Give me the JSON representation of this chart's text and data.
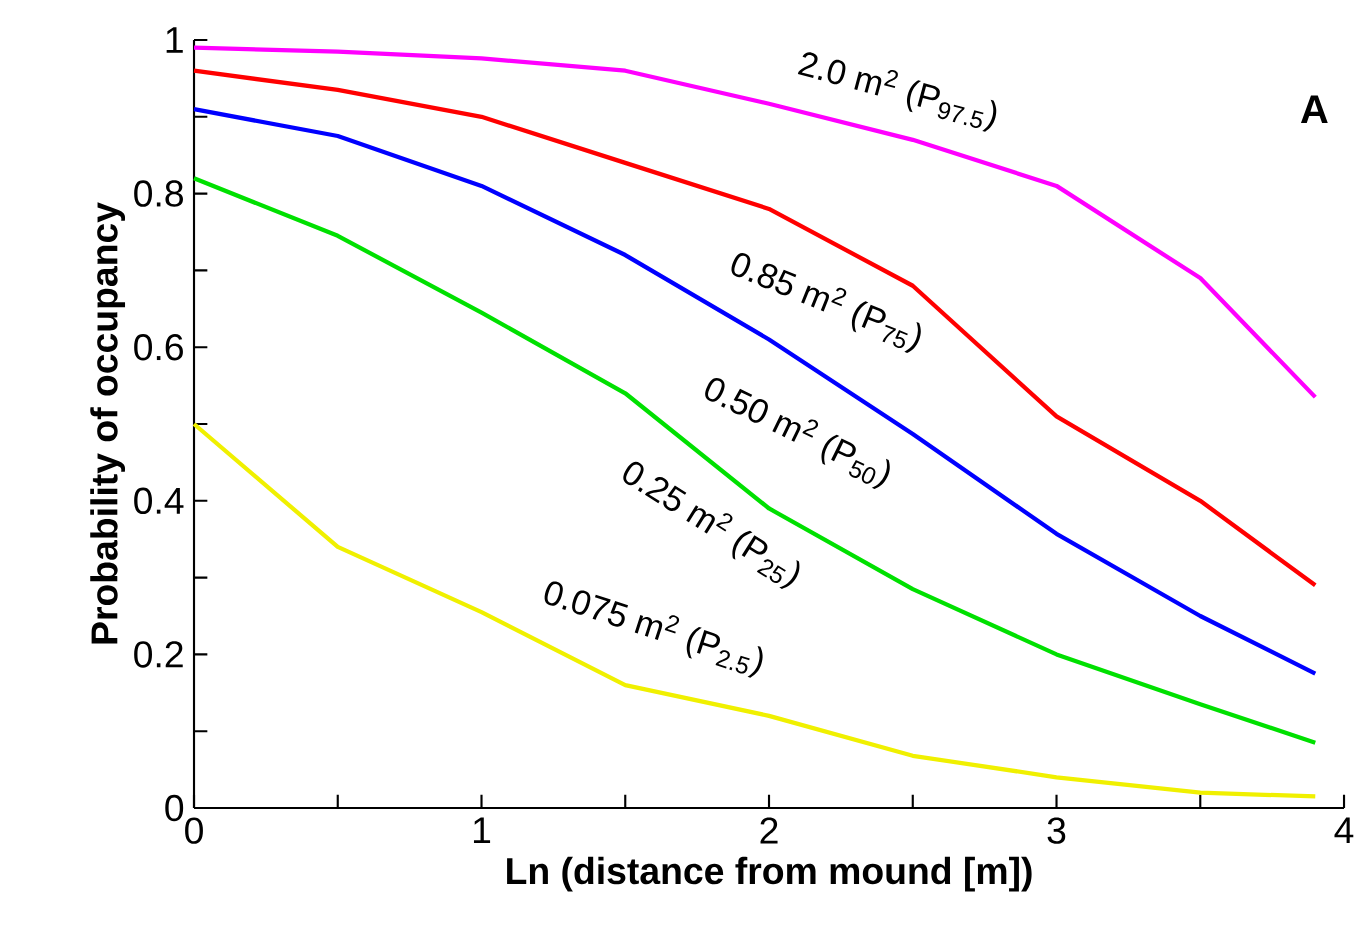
{
  "chart_data": {
    "type": "line",
    "xlabel": "Ln (distance from mound [m])",
    "ylabel": "Probability of occupancy",
    "annotations": [
      "A"
    ],
    "x": [
      0,
      0.5,
      1,
      1.5,
      2,
      2.5,
      3,
      3.5,
      3.9
    ],
    "xlim": [
      0,
      4
    ],
    "ylim": [
      0,
      1
    ],
    "xticks": [
      0,
      {
        "value": 0.5,
        "label": null
      },
      1,
      {
        "value": 1.5,
        "label": null
      },
      2,
      {
        "value": 2.5,
        "label": null
      },
      3,
      {
        "value": 3.5,
        "label": null
      },
      4
    ],
    "yticks": [
      0,
      {
        "value": 0.1,
        "label": null
      },
      0.2,
      {
        "value": 0.3,
        "label": null
      },
      0.4,
      {
        "value": 0.5,
        "label": null
      },
      0.6,
      {
        "value": 0.7,
        "label": null
      },
      0.8,
      {
        "value": 0.9,
        "label": null
      },
      1
    ],
    "grid": false,
    "legend": false,
    "marker": "none",
    "line_style": "solid",
    "series": [
      {
        "name": "2.0 m$^{2}$ (P$_{97.5}$)",
        "color": "#ff00ff",
        "values": [
          0.99,
          0.985,
          0.976,
          0.96,
          0.917,
          0.87,
          0.81,
          0.69,
          0.535
        ]
      },
      {
        "name": "0.85 m$^{2}$ (P$_{75}$)",
        "color": "#ff0000",
        "values": [
          0.96,
          0.935,
          0.9,
          0.84,
          0.78,
          0.68,
          0.51,
          0.4,
          0.29
        ]
      },
      {
        "name": "0.50 m$^{2}$ (P$_{50}$)",
        "color": "#0000ff",
        "values": [
          0.91,
          0.875,
          0.81,
          0.72,
          0.61,
          0.487,
          0.357,
          0.25,
          0.175
        ]
      },
      {
        "name": "0.25 m$^{2}$ (P$_{25}$)",
        "color": "#00e000",
        "values": [
          0.82,
          0.745,
          0.645,
          0.54,
          0.39,
          0.285,
          0.2,
          0.135,
          0.085
        ]
      },
      {
        "name": "0.075 m$^{2}$ (P$_{2.5}$)",
        "color": "#f0f000",
        "values": [
          0.5,
          0.34,
          0.255,
          0.16,
          0.12,
          0.068,
          0.04,
          0.02,
          0.015
        ]
      }
    ]
  }
}
